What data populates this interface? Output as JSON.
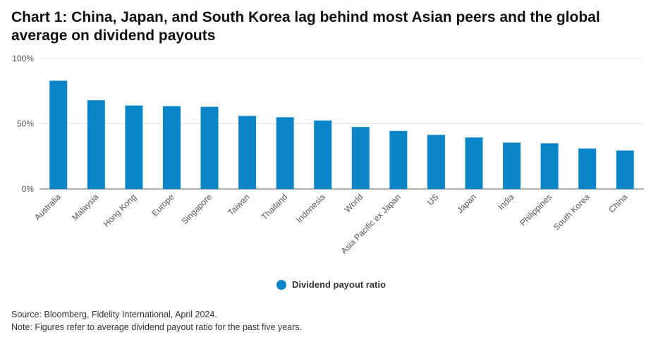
{
  "title": "Chart 1: China, Japan, and South Korea lag behind most Asian peers and the global average on dividend payouts",
  "legend_label": "Dividend payout ratio",
  "source": "Source: Bloomberg, Fidelity International, April 2024.",
  "note": "Note: Figures refer to average dividend payout ratio for the past five years.",
  "colors": {
    "bar": "#0a86c8",
    "grid": "#e3e3e3",
    "axis": "#666666"
  },
  "chart_data": {
    "type": "bar",
    "title": "Chart 1: China, Japan, and South Korea lag behind most Asian peers and the global average on dividend payouts",
    "categories": [
      "Australia",
      "Malaysia",
      "Hong Kong",
      "Europe",
      "Singapore",
      "Taiwan",
      "Thailand",
      "Indonesia",
      "World",
      "Asia Pacific ex Japan",
      "US",
      "Japan",
      "India",
      "Philippines",
      "South Korea",
      "China"
    ],
    "series": [
      {
        "name": "Dividend payout ratio",
        "values": [
          83,
          68,
          64,
          63.5,
          63,
          56,
          55,
          52.5,
          47.5,
          44.5,
          41.5,
          39.5,
          35.5,
          35,
          31,
          29.5
        ]
      }
    ],
    "ylim": [
      0,
      100
    ],
    "yticks": [
      0,
      50,
      100
    ],
    "ytick_labels": [
      "0%",
      "50%",
      "100%"
    ],
    "grid": true,
    "legend_position": "bottom"
  }
}
